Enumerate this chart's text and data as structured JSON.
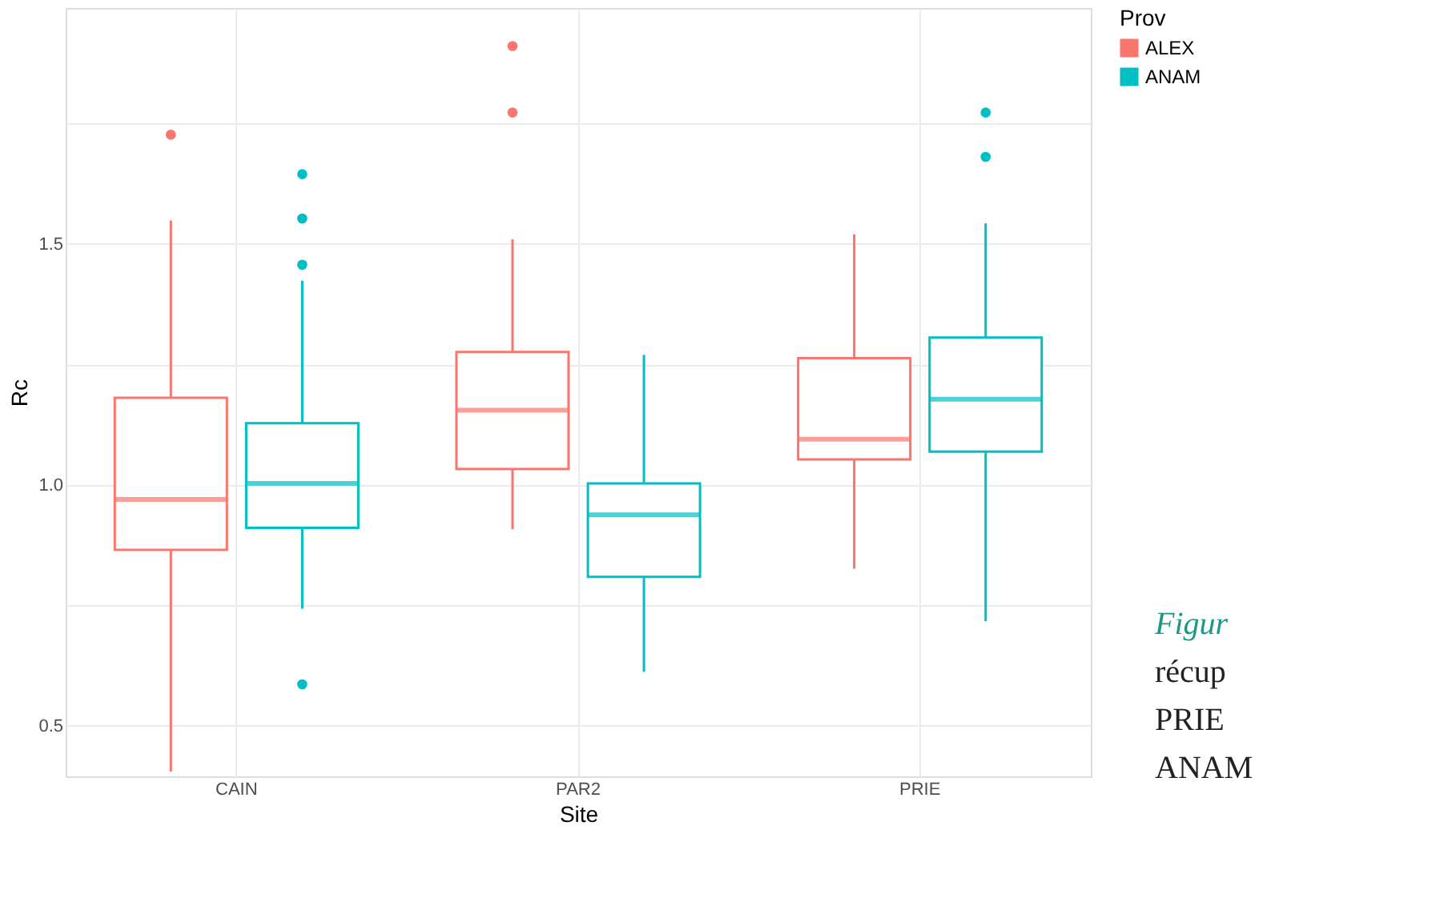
{
  "chart_data": {
    "type": "box",
    "xlabel": "Site",
    "ylabel": "Rc",
    "legend_title": "Prov",
    "legend": "right",
    "grid": true,
    "categories": [
      "CAIN",
      "PAR2",
      "PRIE"
    ],
    "ylim": [
      0.395,
      1.99
    ],
    "yticks": [
      {
        "value": 0.5,
        "label": "0.5"
      },
      {
        "value": 0.75,
        "label": null
      },
      {
        "value": 1.0,
        "label": "1.0"
      },
      {
        "value": 1.25,
        "label": null
      },
      {
        "value": 1.5,
        "label": "1.5"
      },
      {
        "value": 1.75,
        "label": null
      }
    ],
    "series": [
      {
        "name": "ALEX",
        "color": "#f8766d",
        "boxes": [
          {
            "low": 0.405,
            "q1": 0.865,
            "median": 0.97,
            "q3": 1.181,
            "high": 1.549,
            "outliers": [
              1.727
            ]
          },
          {
            "low": 0.908,
            "q1": 1.033,
            "median": 1.155,
            "q3": 1.276,
            "high": 1.51,
            "outliers": [
              1.911,
              1.773
            ]
          },
          {
            "low": 0.826,
            "q1": 1.053,
            "median": 1.095,
            "q3": 1.263,
            "high": 1.52
          }
        ]
      },
      {
        "name": "ANAM",
        "color": "#00bfc4",
        "boxes": [
          {
            "low": 0.743,
            "q1": 0.911,
            "median": 1.003,
            "q3": 1.128,
            "high": 1.424,
            "outliers": [
              1.645,
              1.553,
              1.457,
              0.586
            ]
          },
          {
            "low": 0.612,
            "q1": 0.809,
            "median": 0.938,
            "q3": 1.003,
            "high": 1.27
          },
          {
            "low": 0.717,
            "q1": 1.069,
            "median": 1.178,
            "q3": 1.306,
            "high": 1.543,
            "outliers": [
              1.773,
              1.681
            ]
          }
        ]
      }
    ],
    "annotations": [
      "Figur",
      "récup",
      "PRIE",
      "ANAM"
    ]
  }
}
